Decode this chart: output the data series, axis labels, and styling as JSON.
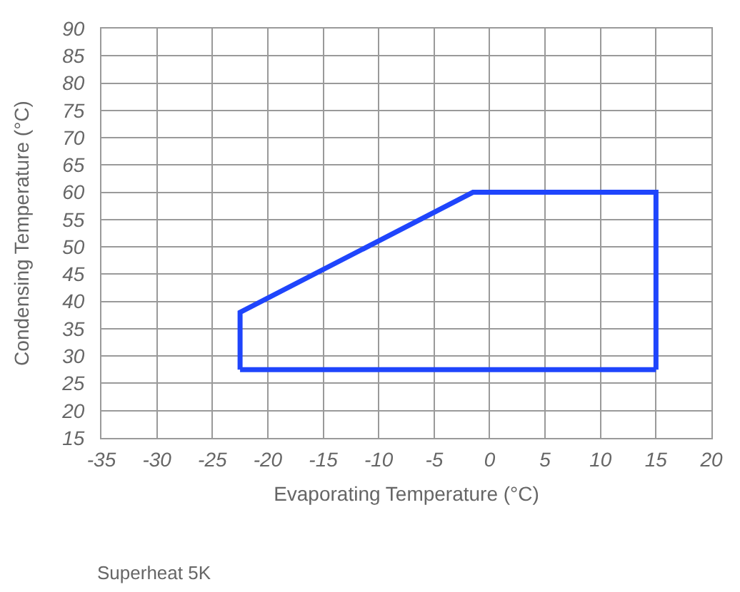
{
  "chart_data": {
    "type": "line",
    "series": [
      {
        "color": "#1f45fc",
        "x": [
          -22.5,
          -22.5,
          -1.5,
          15,
          15
        ],
        "values": [
          27.5,
          38,
          60,
          60,
          27.5
        ]
      },
      {
        "color": "#1f45fc",
        "x": [
          -22.5,
          15
        ],
        "values": [
          27.5,
          27.5
        ]
      }
    ],
    "xlim": [
      -35,
      20
    ],
    "ylim": [
      15,
      90
    ],
    "xticks": [
      -35,
      -30,
      -25,
      -20,
      -15,
      -10,
      -5,
      0,
      5,
      10,
      15,
      20
    ],
    "yticks": [
      15,
      20,
      25,
      30,
      35,
      40,
      45,
      50,
      55,
      60,
      65,
      70,
      75,
      80,
      85,
      90
    ],
    "xlabel": "Evaporating Temperature (°C)",
    "ylabel": "Condensing Temperature (°C)",
    "annotations": [
      "Superheat 5K"
    ],
    "grid": true
  }
}
